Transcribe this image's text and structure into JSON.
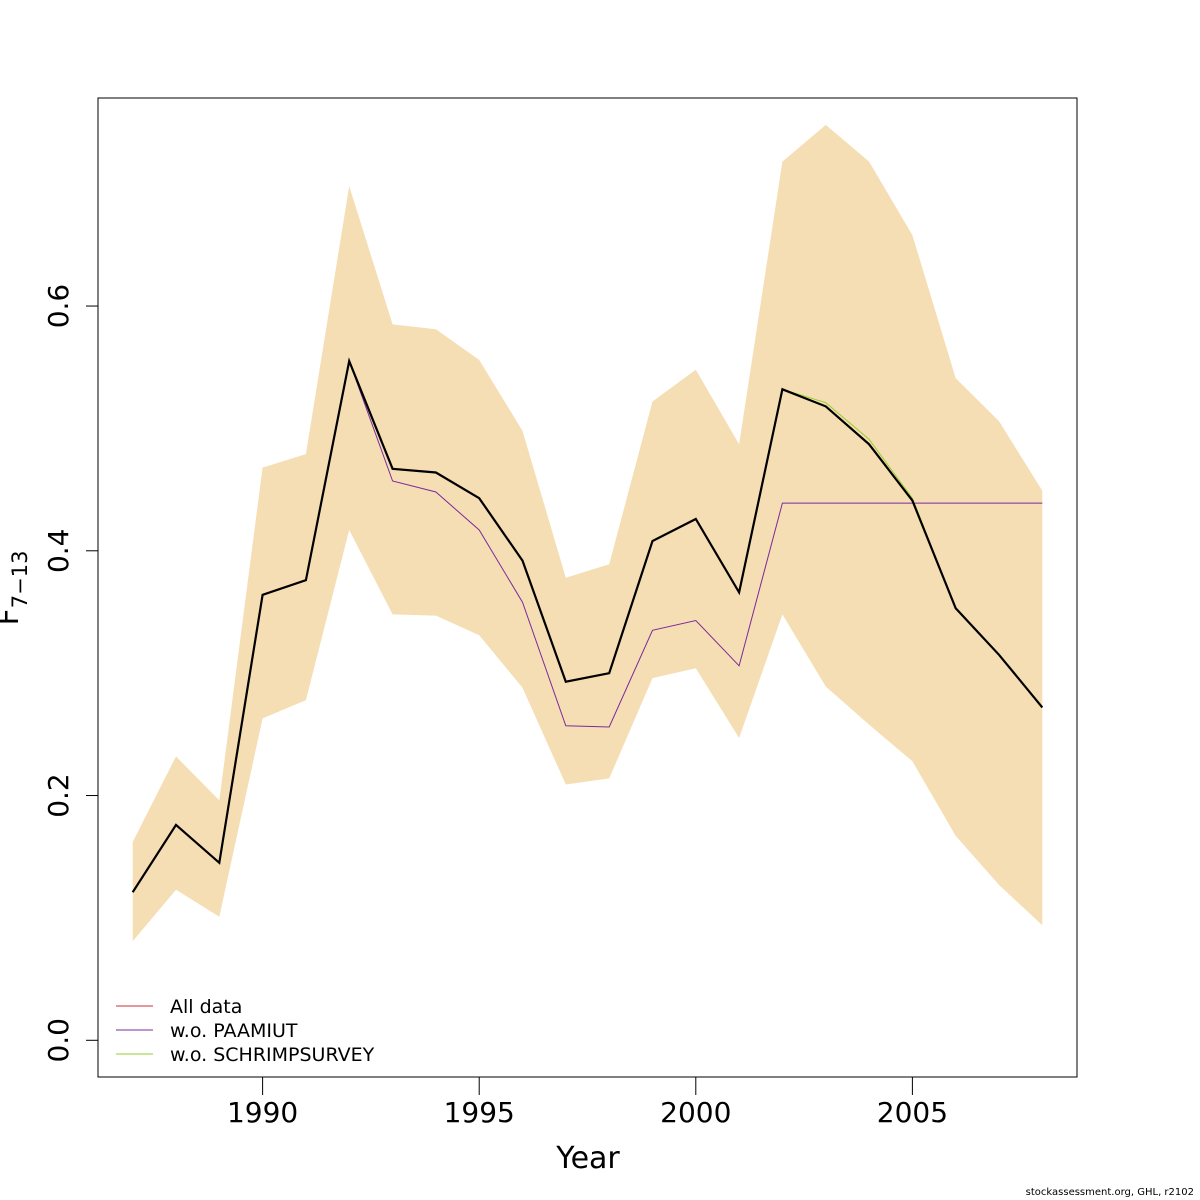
{
  "chart_data": {
    "type": "line",
    "xlabel": "Year",
    "ylabel_main": "F",
    "ylabel_sub": "7−13",
    "xlim": [
      1986.2,
      2008.8
    ],
    "ylim": [
      -0.03,
      0.77
    ],
    "x_ticks": [
      1990,
      1995,
      2000,
      2005
    ],
    "y_ticks": [
      0.0,
      0.2,
      0.4,
      0.6
    ],
    "y_tick_labels": [
      "0.0",
      "0.2",
      "0.4",
      "0.6"
    ],
    "x": [
      1987,
      1988,
      1989,
      1990,
      1991,
      1992,
      1993,
      1994,
      1995,
      1996,
      1997,
      1998,
      1999,
      2000,
      2001,
      2002,
      2003,
      2004,
      2005,
      2006,
      2007,
      2008
    ],
    "band": {
      "color": "#f5deb3",
      "upper": [
        0.162,
        0.232,
        0.196,
        0.468,
        0.479,
        0.698,
        0.585,
        0.581,
        0.556,
        0.498,
        0.378,
        0.389,
        0.522,
        0.548,
        0.487,
        0.718,
        0.748,
        0.718,
        0.658,
        0.541,
        0.506,
        0.449
      ],
      "lower": [
        0.081,
        0.123,
        0.101,
        0.263,
        0.278,
        0.417,
        0.348,
        0.347,
        0.331,
        0.288,
        0.209,
        0.214,
        0.296,
        0.304,
        0.247,
        0.348,
        0.289,
        0.258,
        0.228,
        0.167,
        0.127,
        0.094
      ]
    },
    "series": [
      {
        "name": "All data",
        "color": "#cd2f3a",
        "values": [
          0.121,
          0.176,
          0.145,
          0.364,
          0.376,
          0.555,
          0.467,
          0.464,
          0.443,
          0.392,
          0.293,
          0.3,
          0.408,
          0.426,
          0.366,
          0.532,
          0.518,
          0.487,
          0.441,
          0.353,
          0.315,
          0.272
        ]
      },
      {
        "name": "w.o. PAAMIUT",
        "color": "#7b2a9c",
        "values": [
          0.121,
          0.176,
          0.145,
          0.364,
          0.376,
          0.555,
          0.457,
          0.448,
          0.417,
          0.358,
          0.257,
          0.256,
          0.335,
          0.343,
          0.306,
          0.439,
          0.439,
          0.439,
          0.439,
          0.439,
          0.439,
          0.439
        ]
      },
      {
        "name": "w.o. SCHRIMPSURVEY",
        "color": "#9acd32",
        "values": [
          0.121,
          0.176,
          0.145,
          0.364,
          0.376,
          0.555,
          0.467,
          0.464,
          0.443,
          0.392,
          0.293,
          0.3,
          0.408,
          0.426,
          0.366,
          0.532,
          0.521,
          0.491,
          0.443,
          0.353,
          0.315,
          0.272
        ]
      }
    ],
    "reference": {
      "color": "#000000",
      "values": [
        0.121,
        0.176,
        0.145,
        0.364,
        0.376,
        0.555,
        0.467,
        0.464,
        0.443,
        0.392,
        0.293,
        0.3,
        0.408,
        0.426,
        0.366,
        0.532,
        0.518,
        0.487,
        0.441,
        0.353,
        0.315,
        0.272
      ]
    },
    "legend_position": "bottom-left"
  },
  "credit": "stockassessment.org, GHL, r2102"
}
